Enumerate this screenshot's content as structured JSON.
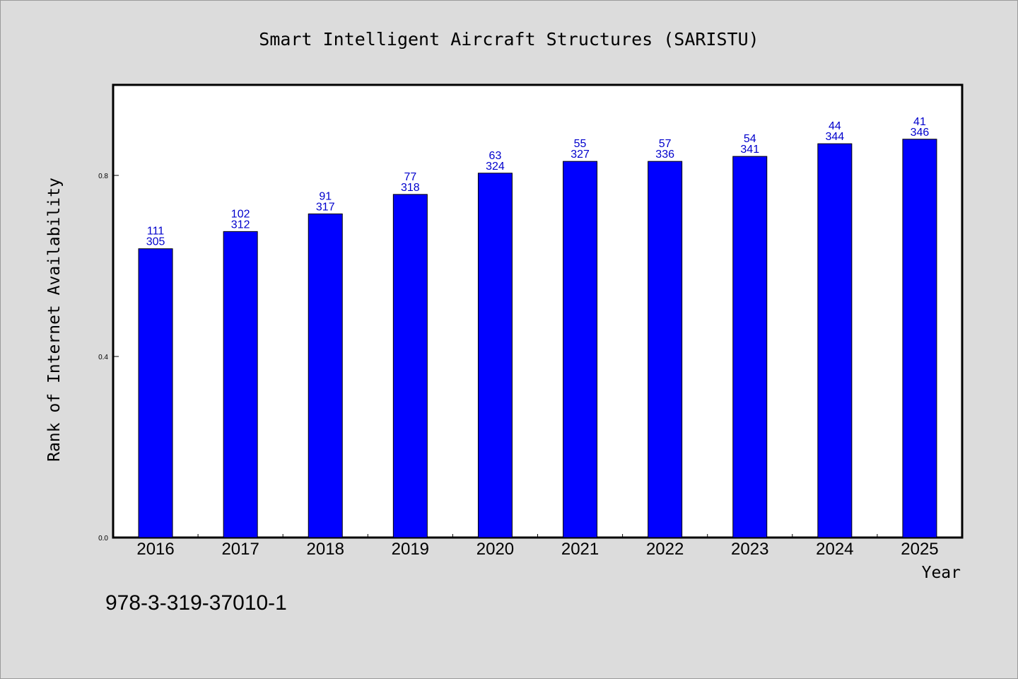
{
  "chart_data": {
    "type": "bar",
    "title": "Smart Intelligent Aircraft Structures (SARISTU)",
    "xlabel": "Year",
    "ylabel": "Rank of Internet Availability",
    "categories": [
      "2016",
      "2017",
      "2018",
      "2019",
      "2020",
      "2021",
      "2022",
      "2023",
      "2024",
      "2025"
    ],
    "values": [
      0.638,
      0.676,
      0.715,
      0.758,
      0.805,
      0.831,
      0.831,
      0.842,
      0.87,
      0.88
    ],
    "annotations_top": [
      "111",
      "102",
      "91",
      "77",
      "63",
      "55",
      "57",
      "54",
      "44",
      "41"
    ],
    "annotations_bottom": [
      "305",
      "312",
      "317",
      "318",
      "324",
      "327",
      "336",
      "341",
      "344",
      "346"
    ],
    "ylim": [
      0,
      1.0
    ],
    "yticks": [
      0.0,
      0.4,
      0.8
    ],
    "ytick_labels": [
      "0.0",
      "0.4",
      "0.8"
    ],
    "grid": false,
    "legend": "none",
    "bar_color": "#0000ff",
    "label_color": "#0000cc"
  },
  "footer": {
    "isbn": "978-3-319-37010-1"
  },
  "colors": {
    "background": "#dcdcdc",
    "plot_background": "#ffffff",
    "bar": "#0000ff"
  }
}
